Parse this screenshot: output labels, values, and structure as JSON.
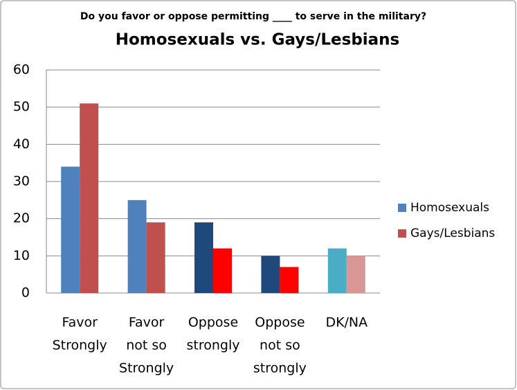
{
  "chart_data": {
    "type": "bar",
    "subtitle": "Do you favor or oppose permitting ____ to serve in the military?",
    "title": "Homosexuals vs. Gays/Lesbians",
    "categories": [
      [
        "Favor",
        "Strongly"
      ],
      [
        "Favor",
        "not so",
        "Strongly"
      ],
      [
        "Oppose",
        "strongly"
      ],
      [
        "Oppose",
        "not so",
        "strongly"
      ],
      [
        "DK/NA"
      ]
    ],
    "series": [
      {
        "name": "Homosexuals",
        "color": "#4f81bd",
        "colors": [
          "#4f81bd",
          "#4f81bd",
          "#1f497d",
          "#1f497d",
          "#4bacc6"
        ],
        "values": [
          34,
          25,
          19,
          10,
          12
        ]
      },
      {
        "name": "Gays/Lesbians",
        "color": "#c0504d",
        "colors": [
          "#c0504d",
          "#c0504d",
          "#ff0000",
          "#ff0000",
          "#d99694"
        ],
        "values": [
          51,
          19,
          12,
          7,
          10
        ]
      }
    ],
    "ylim": [
      0,
      60
    ],
    "yticks": [
      0,
      10,
      20,
      30,
      40,
      50,
      60
    ],
    "grid": true,
    "legend": "right"
  }
}
